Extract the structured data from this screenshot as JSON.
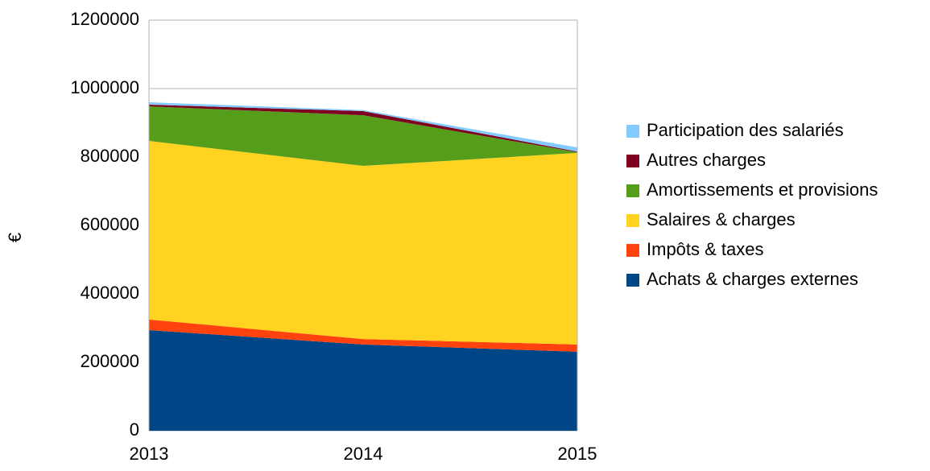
{
  "chart_data": {
    "type": "stacked_area",
    "y_axis_label": "€",
    "categories": [
      "2013",
      "2014",
      "2015"
    ],
    "series": [
      {
        "name": "Achats & charges externes",
        "color": "#004586",
        "values": [
          294000,
          252000,
          231000
        ]
      },
      {
        "name": "Impôts & taxes",
        "color": "#ff420e",
        "values": [
          31000,
          16000,
          21000
        ]
      },
      {
        "name": "Salaires & charges",
        "color": "#ffd320",
        "values": [
          522000,
          506000,
          560000
        ]
      },
      {
        "name": "Amortissements et provisions",
        "color": "#579d1c",
        "values": [
          101000,
          148000,
          2000
        ]
      },
      {
        "name": "Autres charges",
        "color": "#7e0021",
        "values": [
          5000,
          12000,
          2000
        ]
      },
      {
        "name": "Participation des salariés",
        "color": "#83caff",
        "values": [
          7000,
          3000,
          12000
        ]
      }
    ],
    "ylim": [
      0,
      1200000
    ],
    "yticks": [
      0,
      200000,
      400000,
      600000,
      800000,
      1000000,
      1200000
    ],
    "grid": true,
    "legend": "right"
  }
}
